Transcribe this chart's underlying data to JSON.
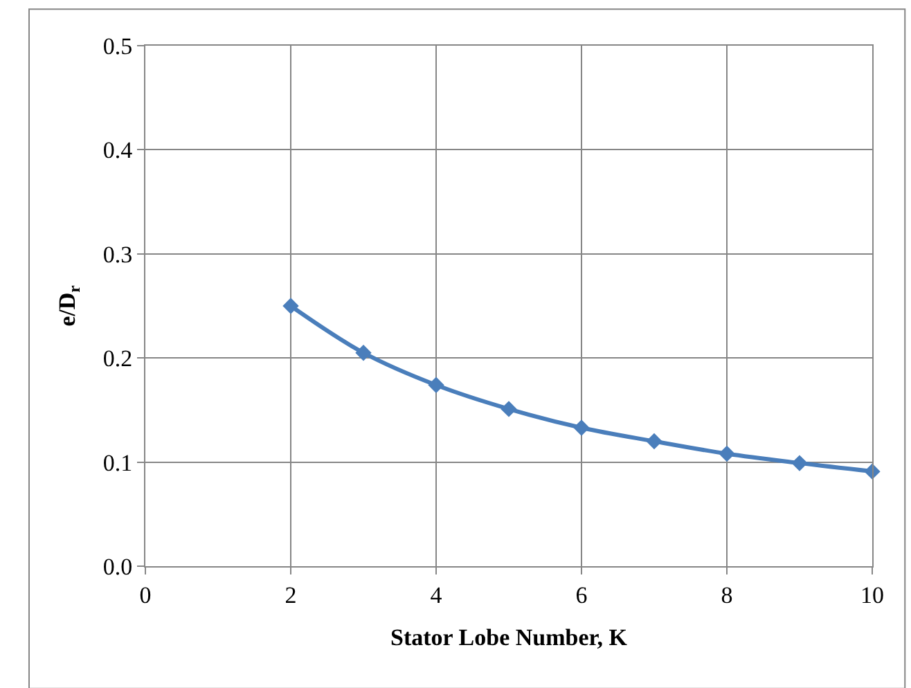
{
  "chart_data": {
    "type": "line",
    "xlabel": "Stator Lobe Number, K",
    "ylabel": "e/D$_{r}$",
    "x": [
      2,
      3,
      4,
      5,
      6,
      7,
      8,
      9,
      10
    ],
    "series": [
      {
        "color": "#4a7ebb",
        "values": [
          0.25,
          0.205,
          0.174,
          0.151,
          0.133,
          0.12,
          0.108,
          0.099,
          0.091
        ]
      }
    ],
    "xlim": [
      0,
      10
    ],
    "xticks": [
      0,
      2,
      4,
      6,
      8,
      10
    ],
    "ylim": [
      0,
      0.5
    ],
    "yticks": [
      {
        "value": 0,
        "label": "0.0"
      },
      0.1,
      0.2,
      0.3,
      0.4,
      0.5
    ],
    "grid": true,
    "marker": "diamond",
    "line_style": "solid",
    "legend": false
  }
}
